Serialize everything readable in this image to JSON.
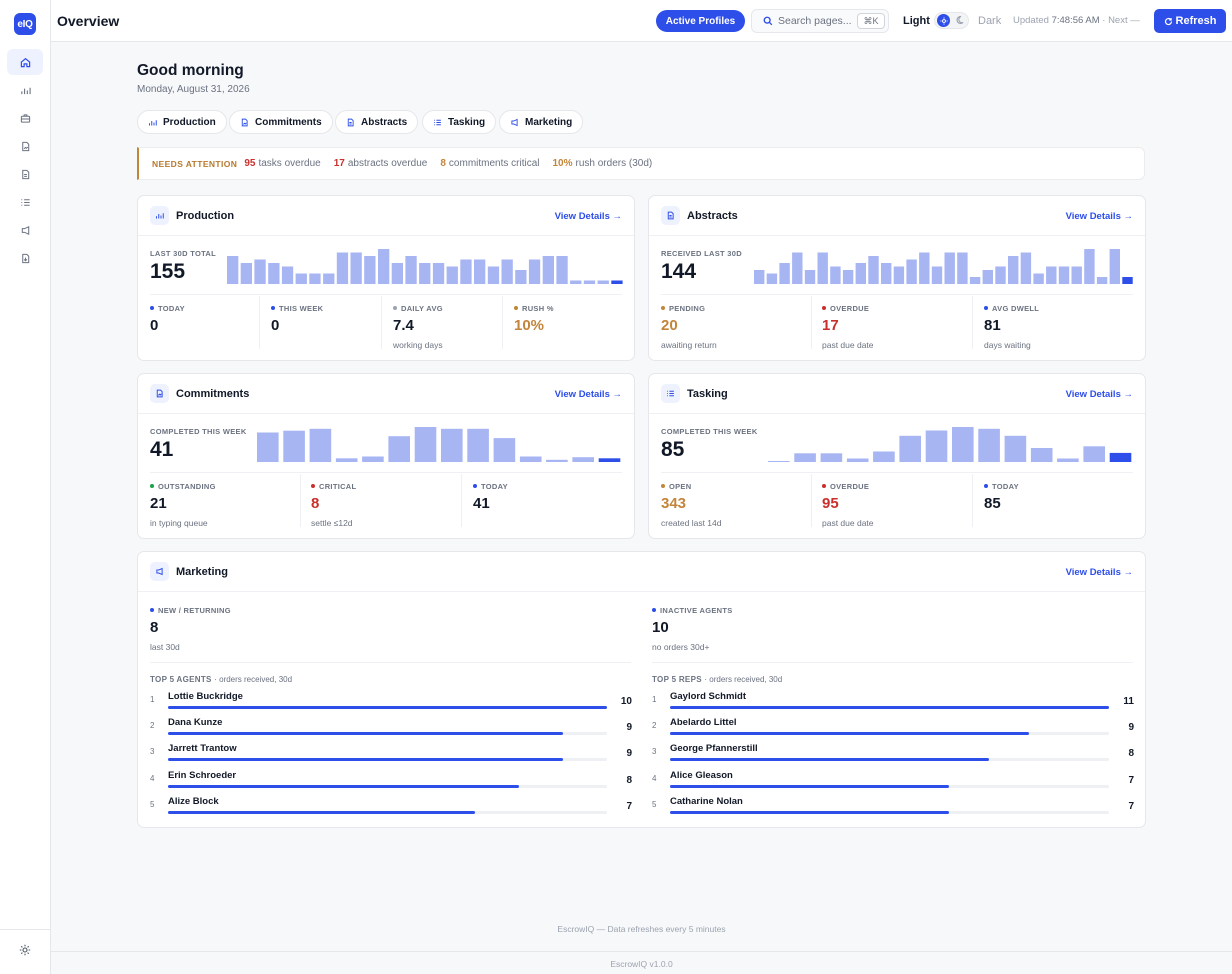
{
  "app": {
    "logo": "eIQ",
    "title": "Overview"
  },
  "colors": {
    "accent": "#2d4ee8",
    "bar_light": "#a7b5f3",
    "amber": "#c2853a",
    "red": "#c9302c",
    "green": "#16a34a"
  },
  "sidebar": {
    "items": [
      {
        "icon": "home-icon",
        "active": true
      },
      {
        "icon": "chart-icon"
      },
      {
        "icon": "briefcase-icon"
      },
      {
        "icon": "file-signature-icon"
      },
      {
        "icon": "document-icon"
      },
      {
        "icon": "list-icon"
      },
      {
        "icon": "megaphone-icon"
      },
      {
        "icon": "file-download-icon"
      }
    ],
    "footer_icon": "gear-icon"
  },
  "topbar": {
    "active_profiles": "Active Profiles",
    "search_placeholder": "Search pages...",
    "shortcut": "⌘K",
    "theme_light": "Light",
    "theme_dark": "Dark",
    "updated_label": "Updated",
    "updated_time": "7:48:56 AM",
    "next_label": "· Next —",
    "refresh": "Refresh"
  },
  "greeting": {
    "title": "Good morning",
    "date": "Monday, August 31, 2026"
  },
  "chips": [
    "Production",
    "Commitments",
    "Abstracts",
    "Tasking",
    "Marketing"
  ],
  "alert": {
    "title": "NEEDS ATTENTION",
    "items": [
      {
        "value": "95",
        "label": "tasks overdue"
      },
      {
        "value": "17",
        "label": "abstracts overdue"
      },
      {
        "value": "8",
        "label": "commitments critical"
      },
      {
        "value": "10%",
        "label": "rush orders (30d)"
      }
    ]
  },
  "view_details": "View Details →",
  "production": {
    "title": "Production",
    "big_label": "LAST 30D TOTAL",
    "big_value": "155",
    "bars": [
      8,
      6,
      7,
      6,
      5,
      3,
      3,
      3,
      9,
      9,
      8,
      10,
      6,
      8,
      6,
      6,
      5,
      7,
      7,
      5,
      7,
      4,
      7,
      8,
      8,
      1,
      1,
      1,
      1
    ],
    "stats": [
      {
        "label": "TODAY",
        "value": "0",
        "sub": ""
      },
      {
        "label": "THIS WEEK",
        "value": "0",
        "sub": ""
      },
      {
        "label": "DAILY AVG",
        "value": "7.4",
        "sub": "working days"
      },
      {
        "label": "RUSH %",
        "value": "10%",
        "sub": ""
      }
    ]
  },
  "abstracts": {
    "title": "Abstracts",
    "big_label": "RECEIVED LAST 30D",
    "big_value": "144",
    "bars": [
      4,
      3,
      6,
      9,
      4,
      9,
      5,
      4,
      6,
      8,
      6,
      5,
      7,
      9,
      5,
      9,
      9,
      2,
      4,
      5,
      8,
      9,
      3,
      5,
      5,
      5,
      10,
      2,
      10,
      2
    ],
    "stats": [
      {
        "label": "PENDING",
        "value": "20",
        "sub": "awaiting return"
      },
      {
        "label": "OVERDUE",
        "value": "17",
        "sub": "past due date"
      },
      {
        "label": "AVG DWELL",
        "value": "81",
        "sub": "days waiting"
      }
    ]
  },
  "commitments": {
    "title": "Commitments",
    "big_label": "COMPLETED THIS WEEK",
    "big_value": "41",
    "bars": [
      8,
      8.5,
      9,
      1,
      1.5,
      7,
      9.5,
      9,
      9,
      6.5,
      1.5,
      0.6,
      1.3,
      1
    ],
    "stats": [
      {
        "label": "OUTSTANDING",
        "value": "21",
        "sub": "in typing queue"
      },
      {
        "label": "CRITICAL",
        "value": "8",
        "sub": "settle ≤12d"
      },
      {
        "label": "TODAY",
        "value": "41",
        "sub": ""
      }
    ]
  },
  "tasking": {
    "title": "Tasking",
    "big_label": "COMPLETED THIS WEEK",
    "big_value": "85",
    "bars": [
      0.3,
      2.5,
      2.5,
      1,
      3,
      7.5,
      9,
      10,
      9.5,
      7.5,
      4,
      1,
      4.5,
      2.6
    ],
    "stats": [
      {
        "label": "OPEN",
        "value": "343",
        "sub": "created last 14d"
      },
      {
        "label": "OVERDUE",
        "value": "95",
        "sub": "past due date"
      },
      {
        "label": "TODAY",
        "value": "85",
        "sub": ""
      }
    ]
  },
  "marketing": {
    "title": "Marketing",
    "left": {
      "label": "NEW / RETURNING",
      "value": "8",
      "sub": "last 30d"
    },
    "right": {
      "label": "INACTIVE AGENTS",
      "value": "10",
      "sub": "no orders 30d+"
    },
    "agents_title": "TOP 5 AGENTS",
    "agents_sub": "· orders received, 30d",
    "agents": [
      {
        "rank": "1",
        "name": "Lottie Buckridge",
        "value": 10
      },
      {
        "rank": "2",
        "name": "Dana Kunze",
        "value": 9
      },
      {
        "rank": "3",
        "name": "Jarrett Trantow",
        "value": 9
      },
      {
        "rank": "4",
        "name": "Erin Schroeder",
        "value": 8
      },
      {
        "rank": "5",
        "name": "Alize Block",
        "value": 7
      }
    ],
    "reps_title": "TOP 5 REPS",
    "reps_sub": "· orders received, 30d",
    "reps": [
      {
        "rank": "1",
        "name": "Gaylord Schmidt",
        "value": 11
      },
      {
        "rank": "2",
        "name": "Abelardo Littel",
        "value": 9
      },
      {
        "rank": "3",
        "name": "George Pfannerstill",
        "value": 8
      },
      {
        "rank": "4",
        "name": "Alice Gleason",
        "value": 7
      },
      {
        "rank": "5",
        "name": "Catharine Nolan",
        "value": 7
      }
    ]
  },
  "footer": {
    "note": "EscrowIQ — Data refreshes every 5 minutes",
    "version": "EscrowIQ v1.0.0"
  }
}
